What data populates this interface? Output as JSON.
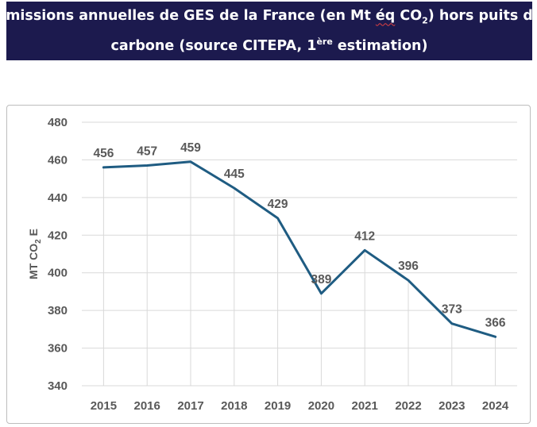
{
  "header": {
    "title_line1_a": "Emissions annuelles de GES de la France (en Mt ",
    "title_line1_squiggle": "éq",
    "title_line1_b": " CO",
    "title_line1_sub": "2",
    "title_line1_c": ") hors puits de",
    "title_line2_a": "carbone (source CITEPA, 1",
    "title_line2_sup": "ère",
    "title_line2_b": " estimation)"
  },
  "colors": {
    "title_bg": "#1c1a4e",
    "line": "#1f5c82",
    "grid": "#d9d9d9",
    "text": "#595959"
  },
  "chart_data": {
    "type": "line",
    "categories": [
      "2015",
      "2016",
      "2017",
      "2018",
      "2019",
      "2020",
      "2021",
      "2022",
      "2023",
      "2024"
    ],
    "values": [
      456,
      457,
      459,
      445,
      429,
      389,
      412,
      396,
      373,
      366
    ],
    "ylabel_main": "MT CO",
    "ylabel_sub": "2",
    "ylabel_end": " E",
    "ylim": [
      340,
      480
    ],
    "yticks": [
      340,
      360,
      380,
      400,
      420,
      440,
      460,
      480
    ],
    "grid": true
  }
}
